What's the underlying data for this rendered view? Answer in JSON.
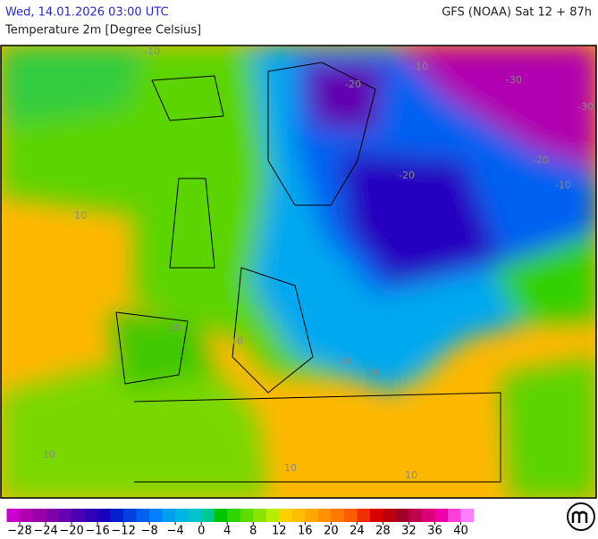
{
  "header": {
    "datetime": "Wed, 14.01.2026 03:00 UTC",
    "model": "GFS (NOAA) Sat 12 + 87h",
    "parameter": "Temperature 2m [Degree Celsius]"
  },
  "map": {
    "contour_labels": [
      "-10",
      "-20",
      "10",
      "-10",
      "-30",
      "-30",
      "-20",
      "-10",
      "-20",
      "10",
      "10",
      "10",
      "-10",
      "10",
      "10",
      "10"
    ]
  },
  "legend": {
    "range": [
      -30,
      42
    ],
    "colors": [
      "#cc00cc",
      "#b000b0",
      "#9a00a8",
      "#8000a8",
      "#6600b0",
      "#4c00b4",
      "#3000b8",
      "#1800c0",
      "#0020d0",
      "#0040e0",
      "#0060f0",
      "#0080ff",
      "#00a0f0",
      "#00b4e4",
      "#00c4cc",
      "#00c890",
      "#00c400",
      "#2ed400",
      "#5cdc00",
      "#8ae400",
      "#b8ec00",
      "#ffd000",
      "#ffbc00",
      "#ffa800",
      "#ff9000",
      "#ff7800",
      "#ff5c00",
      "#f03000",
      "#d80000",
      "#b80010",
      "#a00028",
      "#c0004c",
      "#dc0078",
      "#f000a8",
      "#ff40d8",
      "#ff80ff"
    ],
    "ticks": [
      {
        "value": -28,
        "label": "−28"
      },
      {
        "value": -24,
        "label": "−24"
      },
      {
        "value": -20,
        "label": "−20"
      },
      {
        "value": -16,
        "label": "−16"
      },
      {
        "value": -12,
        "label": "−12"
      },
      {
        "value": -8,
        "label": "−8"
      },
      {
        "value": -4,
        "label": "−4"
      },
      0,
      4,
      8,
      12,
      16,
      20,
      24,
      28,
      32,
      36,
      40
    ]
  }
}
